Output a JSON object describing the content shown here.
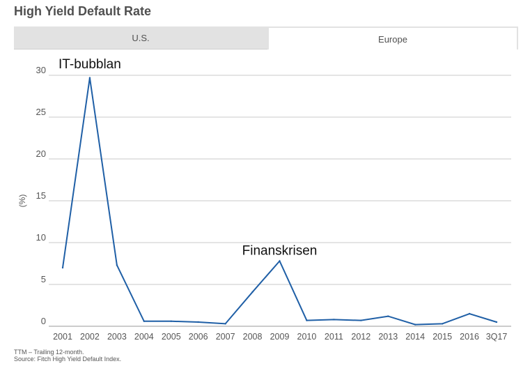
{
  "title": "High Yield Default Rate",
  "tabs": [
    {
      "label": "U.S.",
      "active": false
    },
    {
      "label": "Europe",
      "active": true
    }
  ],
  "footnotes": [
    "TTM – Trailing 12-month.",
    "Source: Fitch High Yield Default Index."
  ],
  "chart_data": {
    "type": "line",
    "title": "",
    "xlabel": "",
    "ylabel": "(%)",
    "categories": [
      "2001",
      "2002",
      "2003",
      "2004",
      "2005",
      "2006",
      "2007",
      "2008",
      "2009",
      "2010",
      "2011",
      "2012",
      "2013",
      "2014",
      "2015",
      "2016",
      "3Q17"
    ],
    "series": [
      {
        "name": "",
        "values": [
          7.0,
          29.7,
          7.3,
          0.6,
          0.6,
          0.5,
          0.3,
          4.1,
          7.8,
          0.7,
          0.8,
          0.7,
          1.2,
          0.2,
          0.3,
          1.5,
          0.5
        ]
      }
    ],
    "yticks": [
      0,
      5,
      10,
      15,
      20,
      25,
      30
    ],
    "ylim": [
      0,
      30
    ],
    "grid": true,
    "line_color": "#1f5fa6",
    "annotations": [
      {
        "text": "IT-bubblan",
        "category": "2002",
        "y": 30.5
      },
      {
        "text": "Finanskrisen",
        "category": "2009",
        "y": 8.2
      }
    ]
  }
}
